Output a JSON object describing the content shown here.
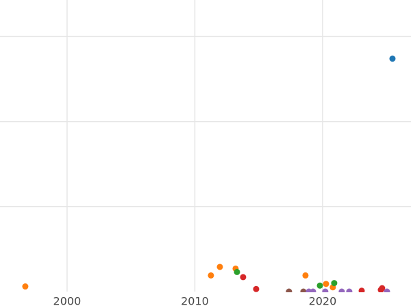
{
  "chart_data": {
    "type": "scatter",
    "xlim": [
      1994.75,
      2026.92
    ],
    "ylim": [
      0,
      3.43
    ],
    "xticks": [
      2000,
      2010,
      2020
    ],
    "ygrid": [
      1,
      2,
      3
    ],
    "grid": true,
    "series": [
      {
        "color": "#1f77b4",
        "x": [
          2025.47
        ],
        "values": [
          2.74
        ]
      },
      {
        "color": "#ff7f0e",
        "x": [
          1996.73,
          2011.26,
          2011.96,
          2013.19,
          2018.66,
          2020.27,
          2020.8
        ],
        "values": [
          0.06,
          0.19,
          0.29,
          0.27,
          0.19,
          0.09,
          0.05
        ]
      },
      {
        "color": "#2ca02c",
        "x": [
          2013.3,
          2019.79,
          2020.91
        ],
        "values": [
          0.23,
          0.07,
          0.1
        ]
      },
      {
        "color": "#d62728",
        "x": [
          2013.78,
          2014.8,
          2023.06,
          2024.56,
          2024.66
        ],
        "values": [
          0.17,
          0.03,
          0.01,
          0.02,
          0.04
        ]
      },
      {
        "color": "#8c564b",
        "x": [
          2017.37,
          2018.5
        ],
        "values": [
          0,
          0
        ]
      },
      {
        "color": "#9467bd",
        "x": [
          2018.93,
          2019.25,
          2020.21,
          2021.5,
          2022.09,
          2025.04
        ],
        "values": [
          0,
          0,
          0,
          0,
          0,
          0
        ]
      }
    ]
  }
}
